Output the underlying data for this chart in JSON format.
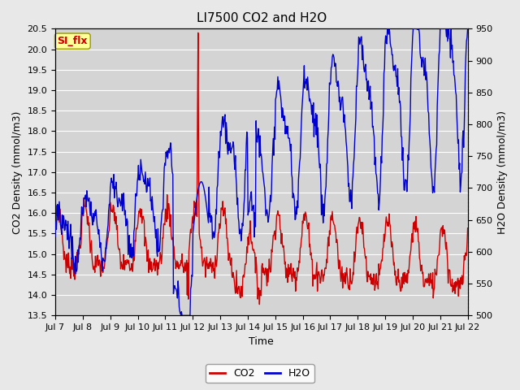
{
  "title": "LI7500 CO2 and H2O",
  "xlabel": "Time",
  "ylabel_left": "CO2 Density (mmol/m3)",
  "ylabel_right": "H2O Density (mmol/m3)",
  "ylim_left": [
    13.5,
    20.5
  ],
  "ylim_right": [
    500,
    950
  ],
  "x_tick_labels": [
    "Jul 7",
    "Jul 8",
    "Jul 9",
    "Jul 10",
    "Jul 11",
    "Jul 12",
    "Jul 13",
    "Jul 14",
    "Jul 15",
    "Jul 16",
    "Jul 17",
    "Jul 18",
    "Jul 19",
    "Jul 20",
    "Jul 21",
    "Jul 22"
  ],
  "bg_color": "#e8e8e8",
  "plot_bg_color": "#d4d4d4",
  "co2_color": "#cc0000",
  "h2o_color": "#0000cc",
  "tab_label": "SI_flx",
  "tab_bg": "#ffff99",
  "tab_text_color": "#cc0000",
  "legend_co2_label": "CO2",
  "legend_h2o_label": "H2O",
  "title_fontsize": 11,
  "axis_label_fontsize": 9,
  "tick_fontsize": 8,
  "linewidth": 1.0
}
